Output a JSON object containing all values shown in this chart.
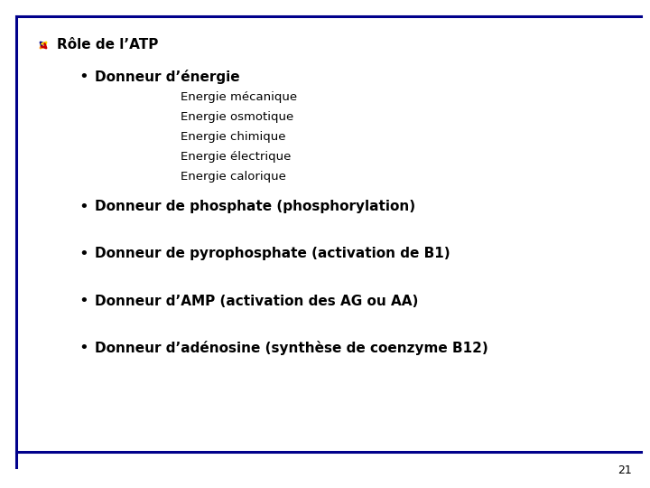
{
  "background_color": "#ffffff",
  "border_color": "#00008B",
  "title": "Rôle de l’ATP",
  "bullet_items": [
    {
      "text": "Donneur d’énergie",
      "bold": true,
      "sub_items": [
        "Energie mécanique",
        "Energie osmotique",
        "Energie chimique",
        "Energie électrique",
        "Energie calorique"
      ]
    },
    {
      "text": "Donneur de phosphate (phosphorylation)",
      "bold": true,
      "sub_items": []
    },
    {
      "text": "Donneur de pyrophosphate (activation de B1)",
      "bold": true,
      "sub_items": []
    },
    {
      "text": "Donneur d’AMP (activation des AG ou AA)",
      "bold": true,
      "sub_items": []
    },
    {
      "text": "Donneur d’adénosine (synthèse de coenzyme B12)",
      "bold": true,
      "sub_items": []
    }
  ],
  "page_number": "21",
  "title_fontsize": 11,
  "bullet_fontsize": 11,
  "sub_fontsize": 9.5,
  "page_num_fontsize": 9
}
